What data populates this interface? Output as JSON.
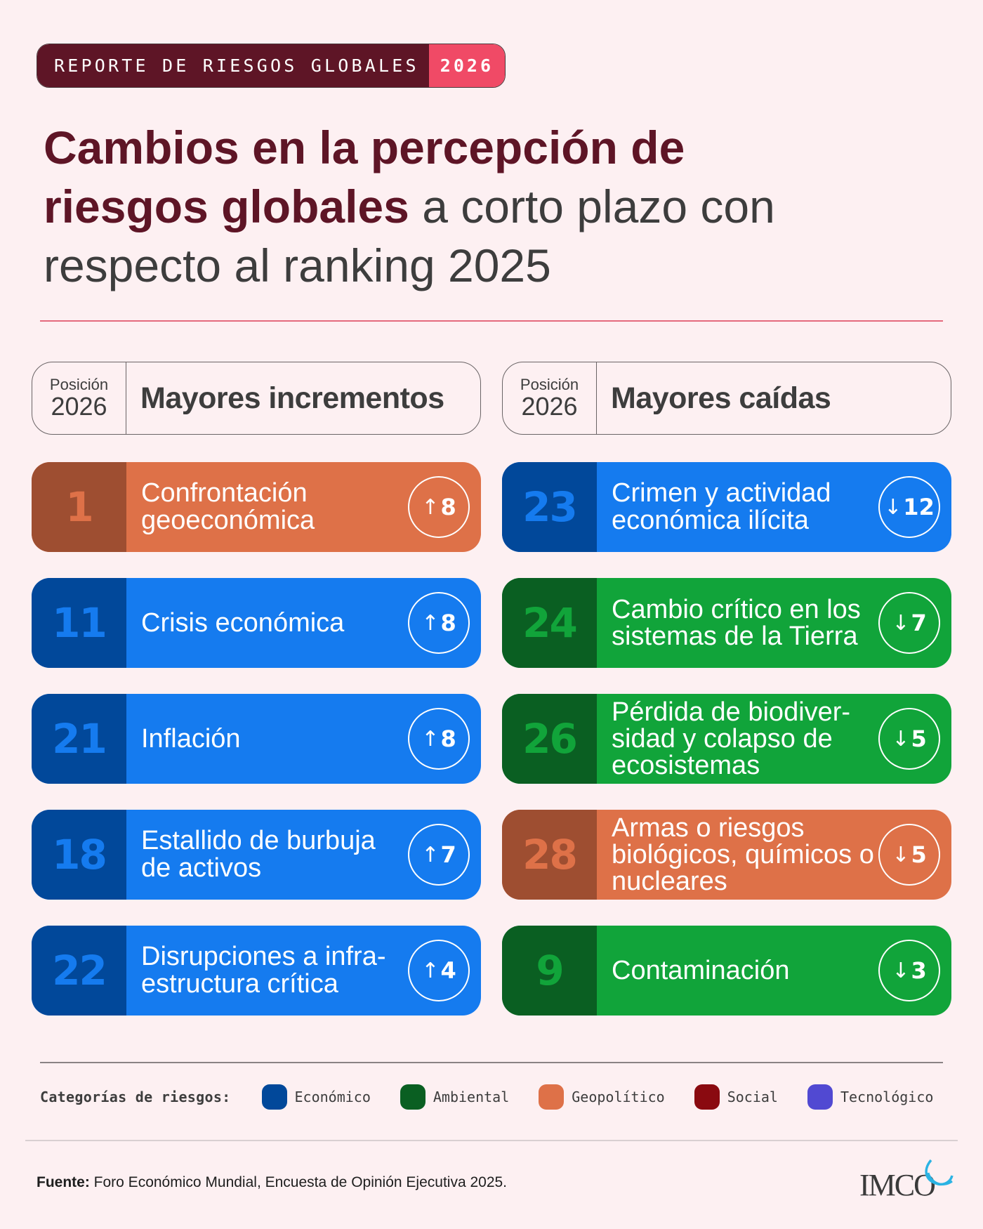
{
  "banner": {
    "text": "REPORTE DE RIESGOS GLOBALES",
    "year": "2026"
  },
  "title": {
    "strong_line1": "Cambios en la percepción de",
    "strong_line2": "riesgos globales",
    "rest_line2": "a corto plazo con",
    "line3": "respecto al ranking 2025"
  },
  "columns": [
    {
      "position_label": "Posición",
      "position_year": "2026",
      "heading": "Mayores incrementos",
      "items": [
        {
          "rank": "1",
          "label": "Confrontación geoeconómica",
          "direction": "up",
          "arrow": "↑",
          "change": "8",
          "category": "Geopolítico"
        },
        {
          "rank": "11",
          "label": "Crisis económica",
          "direction": "up",
          "arrow": "↑",
          "change": "8",
          "category": "Económico"
        },
        {
          "rank": "21",
          "label": "Inflación",
          "direction": "up",
          "arrow": "↑",
          "change": "8",
          "category": "Económico"
        },
        {
          "rank": "18",
          "label": "Estallido de burbuja de activos",
          "direction": "up",
          "arrow": "↑",
          "change": "7",
          "category": "Económico"
        },
        {
          "rank": "22",
          "label": "Disrupciones a infra-estructura crítica",
          "direction": "up",
          "arrow": "↑",
          "change": "4",
          "category": "Económico"
        }
      ]
    },
    {
      "position_label": "Posición",
      "position_year": "2026",
      "heading": "Mayores caídas",
      "items": [
        {
          "rank": "23",
          "label": "Crimen y actividad económica ilícita",
          "direction": "down",
          "arrow": "↓",
          "change": "12",
          "category": "Económico"
        },
        {
          "rank": "24",
          "label": "Cambio crítico en los sistemas de la Tierra",
          "direction": "down",
          "arrow": "↓",
          "change": "7",
          "category": "Ambiental"
        },
        {
          "rank": "26",
          "label": "Pérdida de biodiver-sidad y colapso de ecosistemas",
          "direction": "down",
          "arrow": "↓",
          "change": "5",
          "category": "Ambiental"
        },
        {
          "rank": "28",
          "label": "Armas o riesgos biológicos, químicos o nucleares",
          "direction": "down",
          "arrow": "↓",
          "change": "5",
          "category": "Geopolítico"
        },
        {
          "rank": "9",
          "label": "Contaminación",
          "direction": "down",
          "arrow": "↓",
          "change": "3",
          "category": "Ambiental"
        }
      ]
    }
  ],
  "category_colors": {
    "Económico": {
      "dark": "#01489a",
      "light": "#157bef"
    },
    "Ambiental": {
      "dark": "#0a5f22",
      "light": "#11a43a"
    },
    "Geopolítico": {
      "dark": "#9e4e31",
      "light": "#de7148"
    }
  },
  "legend": {
    "title": "Categorías de riesgos:",
    "items": [
      {
        "label": "Económico",
        "color": "#01489a"
      },
      {
        "label": "Ambiental",
        "color": "#0a5f22"
      },
      {
        "label": "Geopolítico",
        "color": "#de7148"
      },
      {
        "label": "Social",
        "color": "#8a0a10"
      },
      {
        "label": "Tecnológico",
        "color": "#5149d2"
      }
    ]
  },
  "source": {
    "label": "Fuente:",
    "text": "Foro Económico Mundial, Encuesta de Opinión Ejecutiva 2025."
  },
  "logo": {
    "text": "IMCO"
  }
}
